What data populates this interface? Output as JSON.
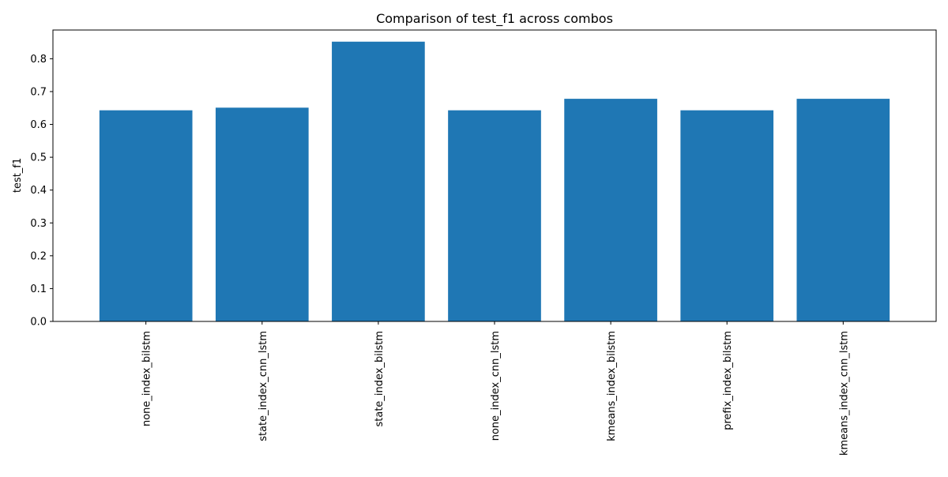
{
  "chart_data": {
    "type": "bar",
    "title": "Comparison of test_f1 across combos",
    "xlabel": "",
    "ylabel": "test_f1",
    "categories": [
      "none_index_bilstm",
      "state_index_cnn_lstm",
      "state_index_bilstm",
      "none_index_cnn_lstm",
      "kmeans_index_bilstm",
      "prefix_index_bilstm",
      "kmeans_index_cnn_lstm"
    ],
    "values": [
      0.643,
      0.651,
      0.852,
      0.643,
      0.678,
      0.643,
      0.678
    ],
    "ylim": [
      0,
      0.8875
    ],
    "yticks": [
      "0.0",
      "0.1",
      "0.2",
      "0.3",
      "0.4",
      "0.5",
      "0.6",
      "0.7",
      "0.8"
    ],
    "grid": false,
    "legend": "none",
    "colors": {
      "bar": "#1f77b4",
      "axis": "#000000",
      "background": "#ffffff"
    }
  }
}
